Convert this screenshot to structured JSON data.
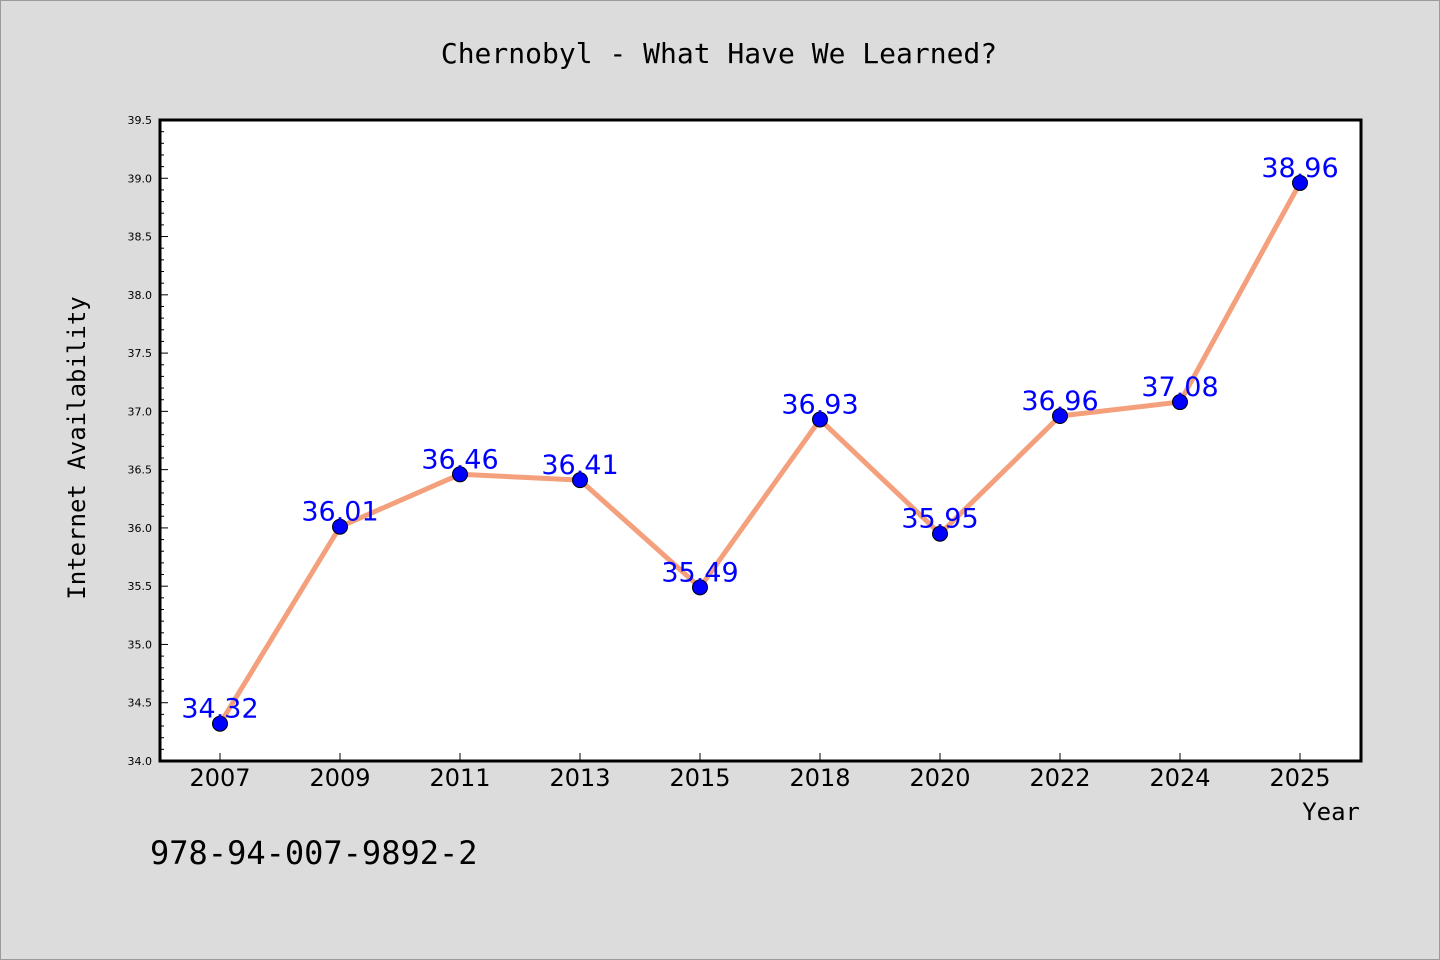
{
  "chart_data": {
    "type": "line",
    "title": "Chernobyl - What Have We Learned?",
    "xlabel": "Year",
    "ylabel": "Internet Availability",
    "categories": [
      "2007",
      "2009",
      "2011",
      "2013",
      "2015",
      "2018",
      "2020",
      "2022",
      "2024",
      "2025"
    ],
    "values": [
      34.32,
      36.01,
      36.46,
      36.41,
      35.49,
      36.93,
      35.95,
      36.96,
      37.08,
      38.96
    ],
    "data_labels": [
      "34.32",
      "36.01",
      "36.46",
      "36.41",
      "35.49",
      "36.93",
      "35.95",
      "36.96",
      "37.08",
      "38.96"
    ],
    "ylim": [
      34.0,
      39.5
    ],
    "yticks": [
      "34.0",
      "34.5",
      "35.0",
      "35.5",
      "36.0",
      "36.5",
      "37.0",
      "37.5",
      "38.0",
      "38.5",
      "39.0",
      "39.5"
    ],
    "grid": false,
    "legend": "none",
    "colors": {
      "line": "#f4a07c",
      "marker": "#0000ff",
      "label": "#0000ff",
      "plot_bg": "#ffffff",
      "page_bg": "#dcdcdc"
    }
  },
  "footer_text": "978-94-007-9892-2"
}
